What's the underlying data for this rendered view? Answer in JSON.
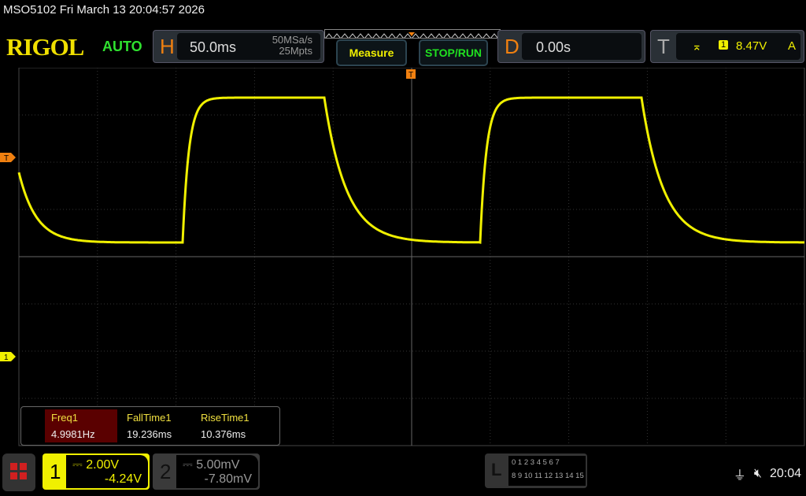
{
  "title": "MSO5102  Fri March 13 20:04:57 2026",
  "logo": "RIGOL",
  "trigger_mode": "AUTO",
  "horizontal": {
    "letter": "H",
    "timebase": "50.0ms",
    "sample_rate": "50MSa/s",
    "memory_depth": "25Mpts"
  },
  "buttons": {
    "measure": "Measure",
    "stop_run": "STOP/RUN"
  },
  "delay": {
    "letter": "D",
    "value": "0.00s"
  },
  "trigger": {
    "letter": "T",
    "source": "1",
    "level": "8.47V",
    "sweep": "A",
    "slope_icon": "rising-edge-icon"
  },
  "markers": {
    "trigger_pos": "T",
    "trigger_level": "T",
    "ch1": "1"
  },
  "measurements": [
    {
      "label": "Freq1",
      "value": "4.9981Hz"
    },
    {
      "label": "FallTime1",
      "value": "19.236ms"
    },
    {
      "label": "RiseTime1",
      "value": "10.376ms"
    }
  ],
  "channels": [
    {
      "num": "1",
      "scale": "2.00V",
      "offset": "-4.24V",
      "color": "#f0f000"
    },
    {
      "num": "2",
      "scale": "5.00mV",
      "offset": "-7.80mV",
      "color": "#999999"
    }
  ],
  "logic": {
    "letter": "L",
    "row1": "0 1 2 3  4 5 6 7",
    "row2": "8 9 10 11 12 13 14 15"
  },
  "status": {
    "time": "20:04",
    "usb_icon": "usb-icon",
    "sound_icon": "speaker-muted-icon"
  },
  "colors": {
    "ch1": "#f0f000",
    "accent": "#f08010"
  }
}
